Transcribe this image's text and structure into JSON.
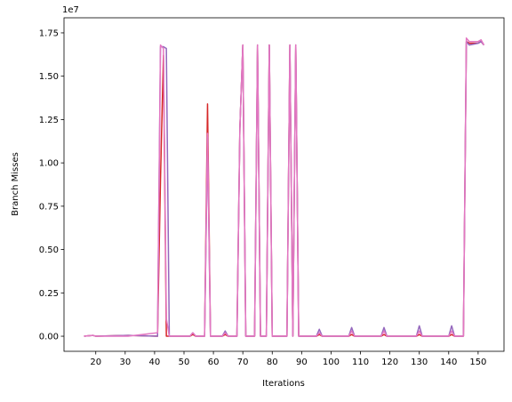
{
  "chart_data": {
    "type": "line",
    "x_label": "Iterations",
    "y_label": "Branch Misses",
    "y_offset_label": "1e7",
    "x": [
      16,
      19,
      20,
      31,
      41,
      42,
      43,
      44,
      45,
      52,
      53,
      54,
      57,
      58,
      59,
      63,
      64,
      65,
      68,
      69,
      70,
      71,
      74,
      75,
      76,
      78,
      79,
      80,
      85,
      86,
      87,
      88,
      89,
      95,
      96,
      97,
      106,
      107,
      108,
      117,
      118,
      119,
      129,
      130,
      131,
      140,
      141,
      142,
      145,
      146,
      147,
      150,
      151,
      152
    ],
    "series": [
      {
        "color": "#d62728",
        "values": [
          0,
          0.005,
          0,
          0.005,
          0,
          0.9,
          1.62,
          0,
          0,
          0,
          0.01,
          0,
          0,
          1.34,
          0,
          0,
          0.01,
          0,
          0,
          1.2,
          1.68,
          0,
          0,
          1.68,
          0,
          0,
          1.68,
          0,
          0,
          1.68,
          0,
          1.68,
          0,
          0,
          0.01,
          0,
          0,
          0.01,
          0,
          0,
          0.01,
          0,
          0,
          0.01,
          0,
          0,
          0.01,
          0,
          0,
          1.7,
          1.69,
          1.69,
          1.7,
          1.68
        ]
      },
      {
        "color": "#9467bd",
        "values": [
          0,
          0.005,
          0,
          0.005,
          0,
          1.67,
          1.67,
          1.66,
          0,
          0,
          0.02,
          0,
          0,
          1.15,
          0,
          0,
          0.03,
          0,
          0,
          1.2,
          1.68,
          0,
          0,
          1.68,
          0,
          0,
          1.68,
          0,
          0,
          1.68,
          0,
          1.68,
          0,
          0,
          0.04,
          0,
          0,
          0.05,
          0,
          0,
          0.05,
          0,
          0,
          0.06,
          0,
          0,
          0.06,
          0,
          0,
          1.7,
          1.68,
          1.69,
          1.7,
          1.68
        ]
      },
      {
        "color": "#e377c2",
        "values": [
          0,
          0.005,
          0,
          0,
          0.02,
          1.68,
          1.66,
          0.1,
          0,
          0,
          0.02,
          0,
          0,
          1.17,
          0,
          0,
          0.02,
          0,
          0,
          1.2,
          1.68,
          0,
          0,
          1.68,
          0,
          0,
          1.68,
          0,
          0,
          1.68,
          0,
          1.68,
          0,
          0,
          0.02,
          0,
          0,
          0.03,
          0,
          0,
          0.03,
          0,
          0,
          0.03,
          0,
          0,
          0.03,
          0,
          0,
          1.72,
          1.7,
          1.7,
          1.71,
          1.68
        ]
      }
    ],
    "xlim": [
      9.2,
      158.8
    ],
    "ylim": [
      -0.087,
      1.837
    ],
    "xticks": [
      20,
      30,
      40,
      50,
      60,
      70,
      80,
      90,
      100,
      110,
      120,
      130,
      140,
      150
    ],
    "yticks": [
      {
        "value": 0,
        "label": "0.00"
      },
      0.25,
      {
        "value": 0.5,
        "label": "0.50"
      },
      0.75,
      {
        "value": 1,
        "label": "1.00"
      },
      1.25,
      {
        "value": 1.5,
        "label": "1.50"
      },
      1.75
    ],
    "grid": false
  }
}
